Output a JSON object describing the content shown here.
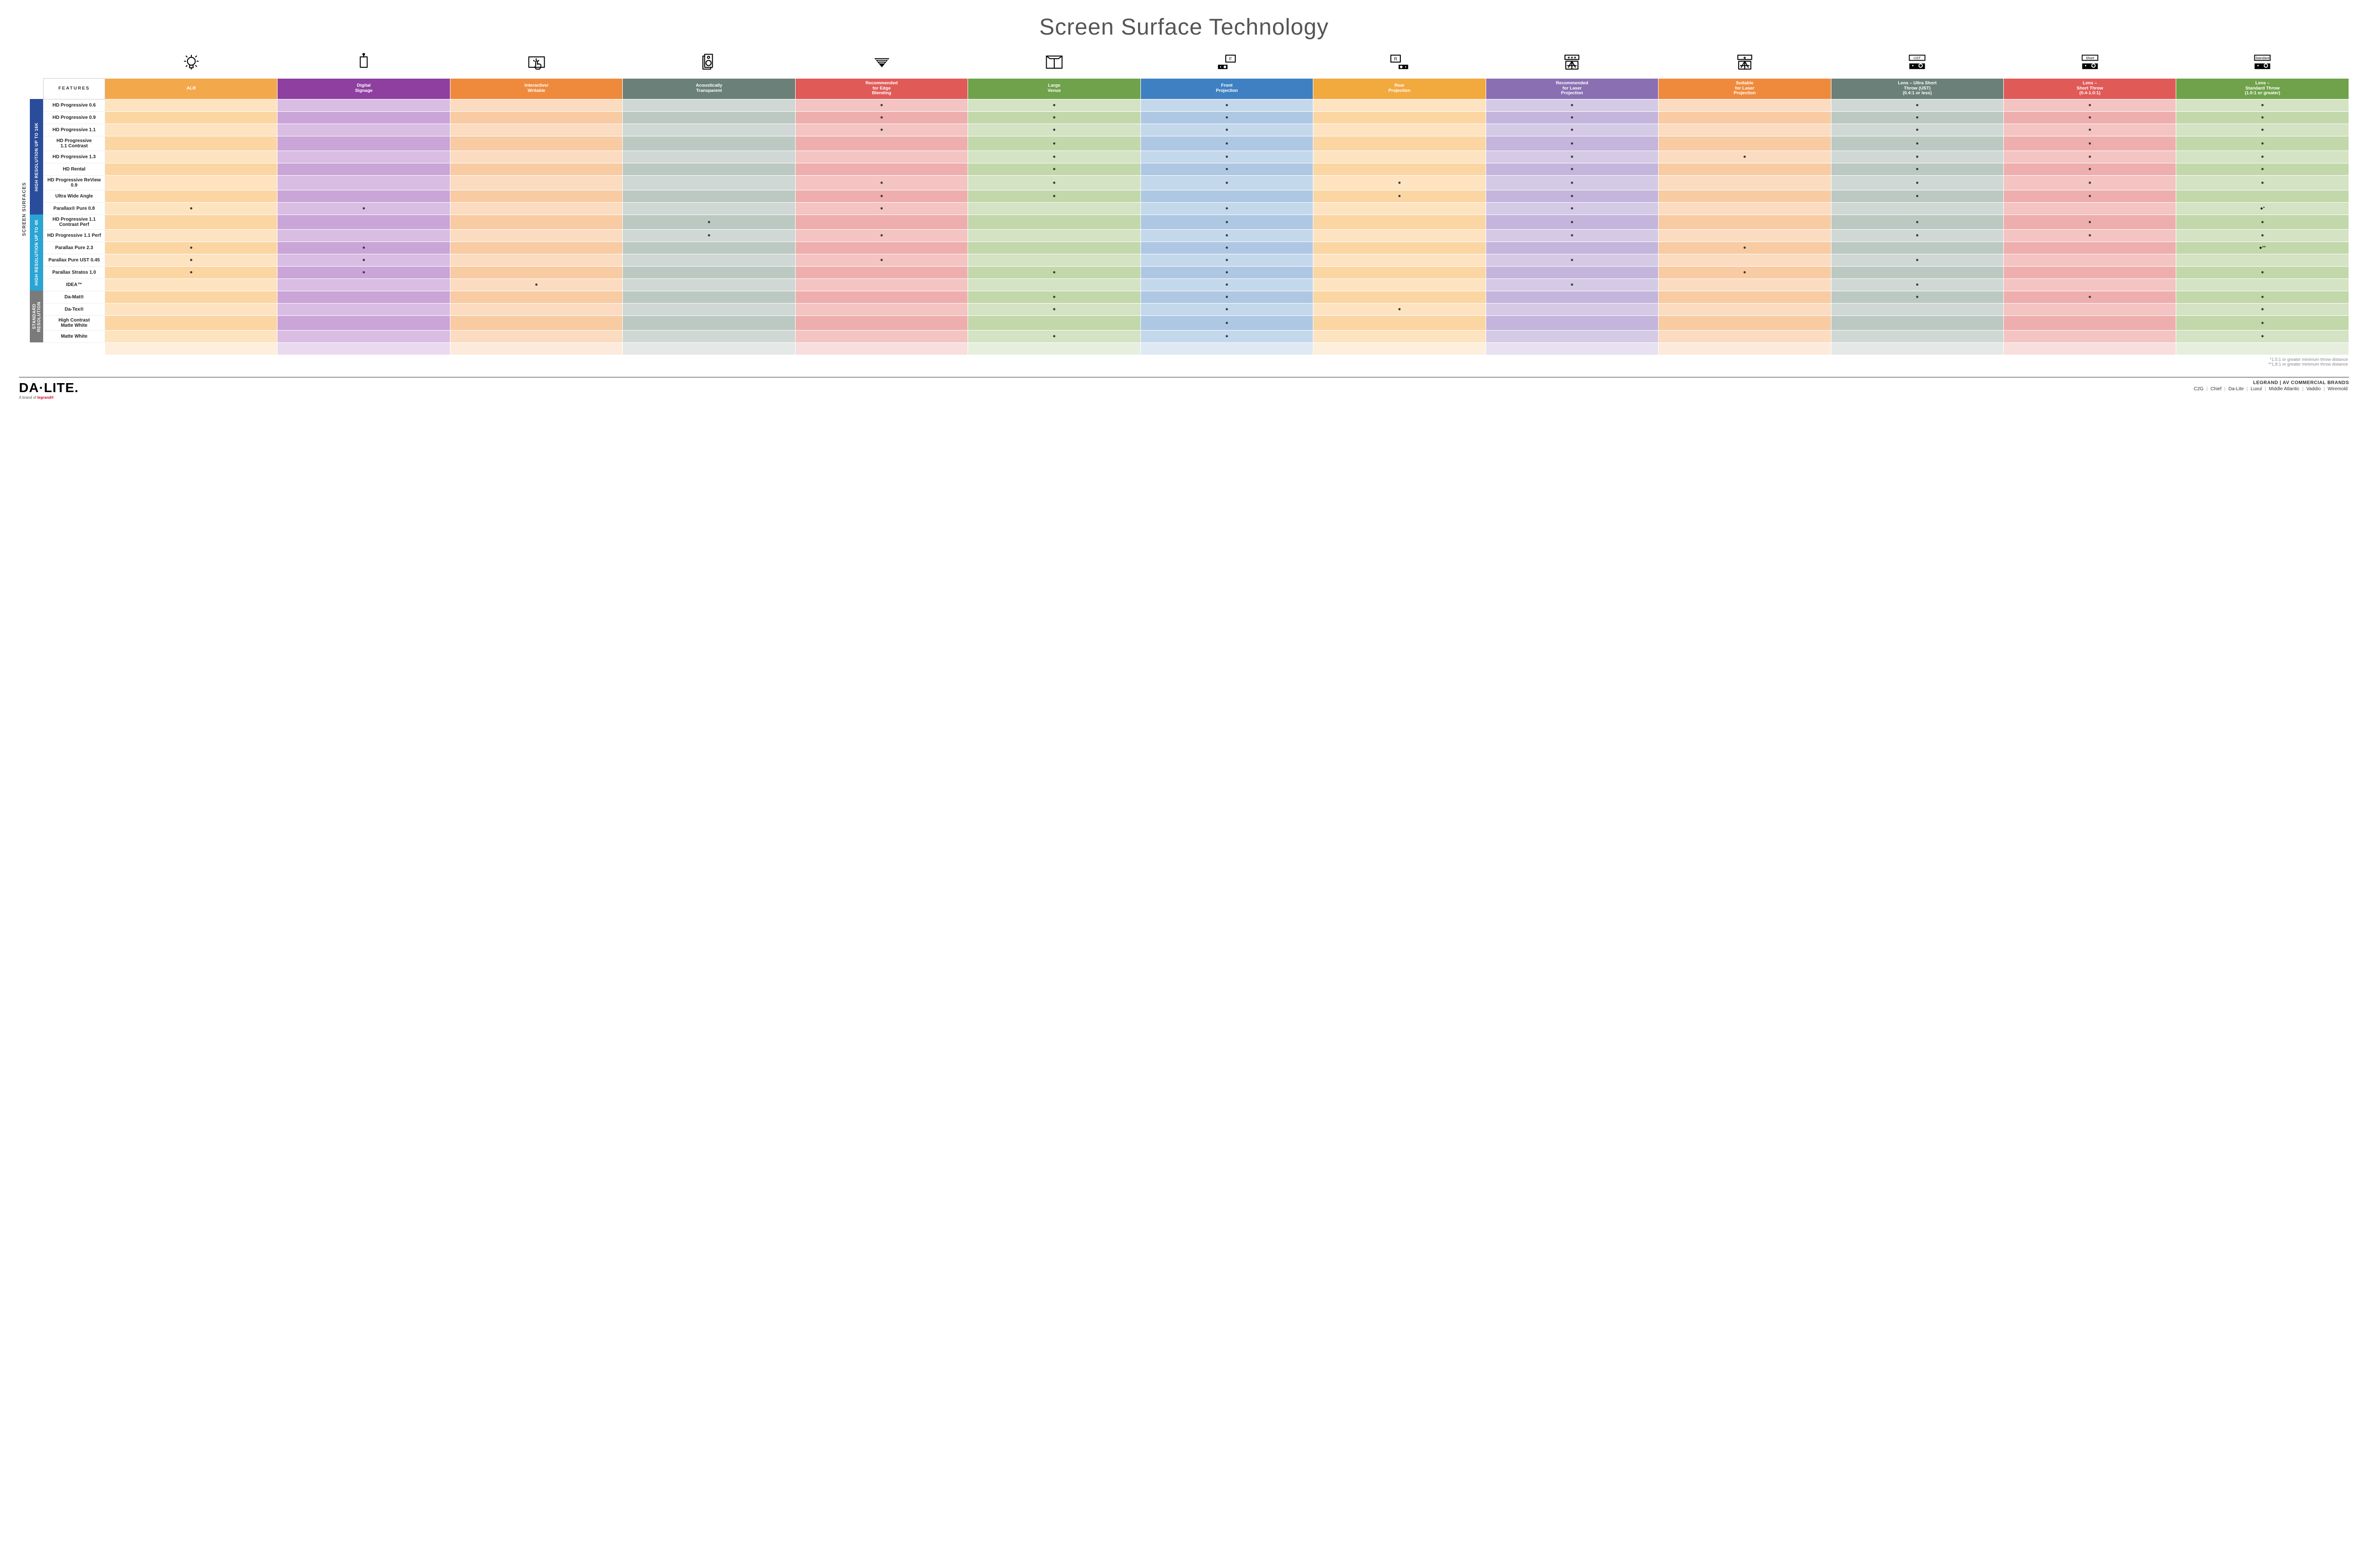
{
  "title": "Screen Surface Technology",
  "sideLabel": "SCREEN SURFACES",
  "featuresLabel": "FEATURES",
  "columns": [
    {
      "key": "alr",
      "label": "ALR",
      "hdr": "#f3a84b",
      "a": "#fde3c0",
      "b": "#fbd6a3"
    },
    {
      "key": "signage",
      "label": "Digital\nSignage",
      "hdr": "#8e3fa0",
      "a": "#d9bde2",
      "b": "#caa5d8"
    },
    {
      "key": "interactive",
      "label": "Interactive/\nWritable",
      "hdr": "#ef8a3c",
      "a": "#fbdcc0",
      "b": "#f8cba3"
    },
    {
      "key": "acoustic",
      "label": "Acoustically\nTransparent",
      "hdr": "#6b8079",
      "a": "#cfd8d4",
      "b": "#bcc9c3"
    },
    {
      "key": "edge",
      "label": "Recommended\nfor Edge\nBlending",
      "hdr": "#e05a57",
      "a": "#f3c4c2",
      "b": "#eeaead"
    },
    {
      "key": "large",
      "label": "Large\nVenue",
      "hdr": "#6fa24a",
      "a": "#d3e3c3",
      "b": "#c2d8ab"
    },
    {
      "key": "front",
      "label": "Front\nProjection",
      "hdr": "#3f80c2",
      "a": "#c4d8ec",
      "b": "#aec8e4"
    },
    {
      "key": "rear",
      "label": "Rear\nProjection",
      "hdr": "#f2a93e",
      "a": "#fde3c0",
      "b": "#fbd6a3"
    },
    {
      "key": "reclaser",
      "label": "Recommended\nfor Laser\nProjection",
      "hdr": "#8a6fb3",
      "a": "#d4cae6",
      "b": "#c3b5dc"
    },
    {
      "key": "suitlaser",
      "label": "Suitable\nfor Laser\nProjection",
      "hdr": "#ef8a3c",
      "a": "#fbdcc0",
      "b": "#f8cba3"
    },
    {
      "key": "ust",
      "label": "Lens – Ultra Short\nThrow (UST)\n(0.4:1 or less)",
      "hdr": "#6b8079",
      "a": "#cfd8d4",
      "b": "#bcc9c3"
    },
    {
      "key": "short",
      "label": "Lens –\nShort Throw\n(0.4-1.0:1)",
      "hdr": "#e05a57",
      "a": "#f3c4c2",
      "b": "#eeaead"
    },
    {
      "key": "std",
      "label": "Lens –\nStandard Throw\n(1.0:1 or greater)",
      "hdr": "#6fa24a",
      "a": "#d3e3c3",
      "b": "#c2d8ab"
    }
  ],
  "groups": [
    {
      "label": "HIGH RESOLUTION UP TO 16K",
      "color": "#2a4d9b",
      "rows": [
        {
          "label": "HD Progressive 0.6",
          "dots": [
            "edge",
            "large",
            "front",
            "reclaser",
            "ust",
            "short",
            "std"
          ]
        },
        {
          "label": "HD Progressive 0.9",
          "dots": [
            "edge",
            "large",
            "front",
            "reclaser",
            "ust",
            "short",
            "std"
          ]
        },
        {
          "label": "HD Progressive 1.1",
          "dots": [
            "edge",
            "large",
            "front",
            "reclaser",
            "ust",
            "short",
            "std"
          ]
        },
        {
          "label": "HD Progressive\n1.1 Contrast",
          "dots": [
            "large",
            "front",
            "reclaser",
            "ust",
            "short",
            "std"
          ]
        },
        {
          "label": "HD Progressive 1.3",
          "dots": [
            "large",
            "front",
            "reclaser",
            "suitlaser",
            "ust",
            "short",
            "std"
          ]
        },
        {
          "label": "HD Rental",
          "dots": [
            "large",
            "front",
            "reclaser",
            "ust",
            "short",
            "std"
          ]
        },
        {
          "label": "HD Progressive ReView 0.9",
          "dots": [
            "edge",
            "large",
            "front",
            "rear",
            "reclaser",
            "ust",
            "short",
            "std"
          ]
        },
        {
          "label": "Ultra Wide Angle",
          "dots": [
            "edge",
            "large",
            "rear",
            "reclaser",
            "ust",
            "short"
          ]
        },
        {
          "label": "Parallax® Pure 0.8",
          "dots": [
            "alr",
            "signage",
            "edge",
            "front",
            "reclaser"
          ],
          "extra": {
            "std": "●*"
          }
        }
      ]
    },
    {
      "label": "HIGH RESOLUTION UP TO 4K",
      "color": "#2aa4d4",
      "rows": [
        {
          "label": "HD Progressive 1.1\nContrast Perf",
          "dots": [
            "acoustic",
            "front",
            "reclaser",
            "ust",
            "short",
            "std"
          ]
        },
        {
          "label": "HD Progressive 1.1 Perf",
          "dots": [
            "acoustic",
            "edge",
            "front",
            "reclaser",
            "ust",
            "short",
            "std"
          ]
        },
        {
          "label": "Parallax Pure 2.3",
          "dots": [
            "alr",
            "signage",
            "front",
            "suitlaser"
          ],
          "extra": {
            "std": "●**"
          }
        },
        {
          "label": "Parallax Pure UST 0.45",
          "dots": [
            "alr",
            "signage",
            "edge",
            "front",
            "reclaser",
            "ust"
          ]
        },
        {
          "label": "Parallax Stratos 1.0",
          "dots": [
            "alr",
            "signage",
            "large",
            "front",
            "suitlaser",
            "std"
          ]
        },
        {
          "label": "IDEA™",
          "dots": [
            "interactive",
            "front",
            "reclaser",
            "ust"
          ]
        }
      ]
    },
    {
      "label": "STANDARD\nRESOLUTION",
      "color": "#7a7a7a",
      "rows": [
        {
          "label": "Da-Mat®",
          "dots": [
            "large",
            "front",
            "ust",
            "short",
            "std"
          ]
        },
        {
          "label": "Da-Tex®",
          "dots": [
            "large",
            "front",
            "rear",
            "std"
          ]
        },
        {
          "label": "High Contrast\nMatte White",
          "dots": [
            "front",
            "std"
          ]
        },
        {
          "label": "Matte White",
          "dots": [
            "large",
            "front",
            "std"
          ]
        }
      ]
    }
  ],
  "footnotes": [
    "*1.5:1 or greater minimum throw distance",
    "**1.8:1 or greater minimum throw distance"
  ],
  "footer": {
    "logo": {
      "main": "DA·LITE.",
      "sub": "A brand of ",
      "subBrand": "legrand®"
    },
    "rightTop": "LEGRAND | AV COMMERCIAL BRANDS",
    "brands": [
      "C2G",
      "Chief",
      "Da-Lite",
      "Luxul",
      "Middle Atlantic",
      "Vaddio",
      "Wiremold"
    ]
  },
  "icons": {
    "alr": "bulb",
    "signage": "signage",
    "interactive": "touch",
    "acoustic": "speaker",
    "edge": "blend",
    "large": "venue",
    "front": "frontproj",
    "rear": "rearproj",
    "reclaser": "laserstar3",
    "suitlaser": "laserstar1",
    "ust": "proj-ust",
    "short": "proj-short",
    "std": "proj-std"
  }
}
